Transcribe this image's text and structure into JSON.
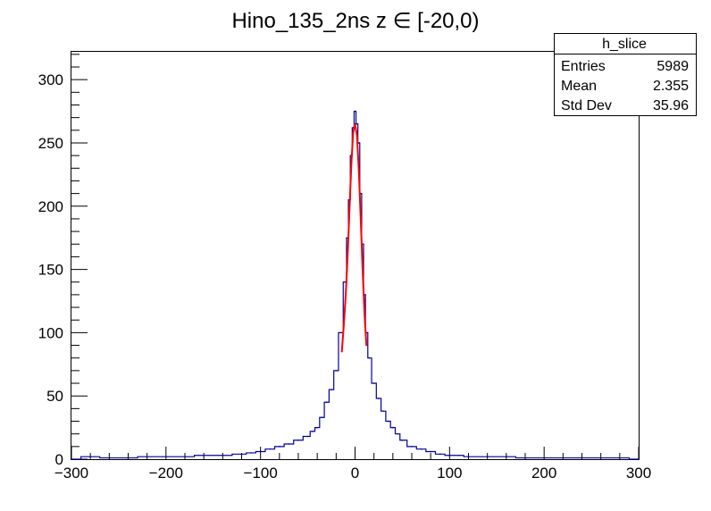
{
  "chart_data": {
    "type": "histogram",
    "title": "Hino_135_2ns z  ∈ [-20,0)",
    "xlabel": "",
    "ylabel": "",
    "xlim": [
      -300,
      300
    ],
    "ylim": [
      0,
      322
    ],
    "x_ticks": [
      "−300",
      "−200",
      "−100",
      "0",
      "100",
      "200",
      "300"
    ],
    "x_tick_values": [
      -300,
      -200,
      -100,
      0,
      100,
      200,
      300
    ],
    "y_ticks": [
      "0",
      "50",
      "100",
      "150",
      "200",
      "250",
      "300"
    ],
    "y_tick_values": [
      0,
      50,
      100,
      150,
      200,
      250,
      300
    ],
    "grid": false,
    "legend_placement": "top-right",
    "stats_box": {
      "name": "h_slice",
      "rows": [
        {
          "label": "Entries",
          "value": "5989"
        },
        {
          "label": "Mean",
          "value": "2.355"
        },
        {
          "label": "Std Dev",
          "value": "35.96"
        }
      ]
    },
    "series": [
      {
        "kind": "histogram",
        "color": "#000099",
        "x": [
          -300,
          -280,
          -260,
          -240,
          -220,
          -200,
          -180,
          -160,
          -140,
          -120,
          -110,
          -100,
          -90,
          -80,
          -70,
          -60,
          -50,
          -45,
          -40,
          -35,
          -30,
          -25,
          -20,
          -15,
          -10,
          -8,
          -6,
          -4,
          -2,
          0,
          2,
          4,
          6,
          8,
          10,
          12,
          15,
          20,
          25,
          30,
          35,
          40,
          45,
          50,
          60,
          70,
          80,
          90,
          100,
          110,
          120,
          140,
          160,
          180,
          200,
          220,
          240,
          260,
          280,
          300
        ],
        "y": [
          0,
          2,
          1,
          1,
          2,
          2,
          2,
          3,
          3,
          4,
          5,
          6,
          8,
          10,
          12,
          15,
          18,
          22,
          25,
          33,
          45,
          55,
          70,
          100,
          140,
          175,
          205,
          240,
          262,
          275,
          265,
          250,
          210,
          170,
          130,
          100,
          80,
          60,
          48,
          38,
          30,
          25,
          20,
          15,
          10,
          8,
          6,
          4,
          3,
          3,
          2,
          2,
          2,
          1,
          1,
          1,
          1,
          1,
          1,
          0
        ]
      },
      {
        "kind": "fit",
        "color": "#ff0000",
        "x": [
          -14,
          -12,
          -10,
          -8,
          -6,
          -4,
          -2,
          0,
          2,
          4,
          6,
          8,
          10,
          12
        ],
        "y": [
          85,
          105,
          128,
          158,
          195,
          232,
          258,
          265,
          256,
          228,
          190,
          150,
          115,
          90
        ]
      }
    ]
  }
}
